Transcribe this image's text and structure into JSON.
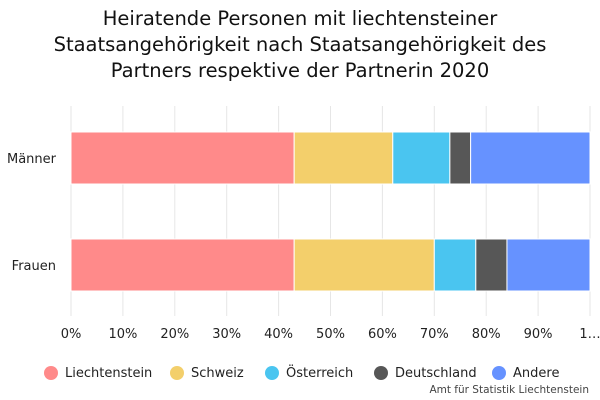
{
  "chart_data": {
    "type": "bar",
    "orientation": "horizontal",
    "stacked": true,
    "title_lines": [
      "Heiratende Personen mit liechtensteiner",
      "Staatsangehörigkeit nach Staatsangehörigkeit des",
      "Partners respektive der Partnerin 2020"
    ],
    "categories": [
      "Männer",
      "Frauen"
    ],
    "series": [
      {
        "name": "Liechtenstein",
        "color": "#ff8a8a",
        "values": [
          43,
          43
        ]
      },
      {
        "name": "Schweiz",
        "color": "#f3cf6b",
        "values": [
          19,
          27
        ]
      },
      {
        "name": "Österreich",
        "color": "#4ac5f0",
        "values": [
          11,
          8
        ]
      },
      {
        "name": "Deutschland",
        "color": "#575757",
        "values": [
          4,
          6
        ]
      },
      {
        "name": "Andere",
        "color": "#6692ff",
        "values": [
          23,
          16
        ]
      }
    ],
    "xlim": [
      0,
      100
    ],
    "x_ticks": [
      "0%",
      "10%",
      "20%",
      "30%",
      "40%",
      "50%",
      "60%",
      "70%",
      "80%",
      "90%",
      "1…"
    ],
    "grid": true,
    "legend_position": "bottom",
    "source": "Amt für Statistik Liechtenstein"
  }
}
